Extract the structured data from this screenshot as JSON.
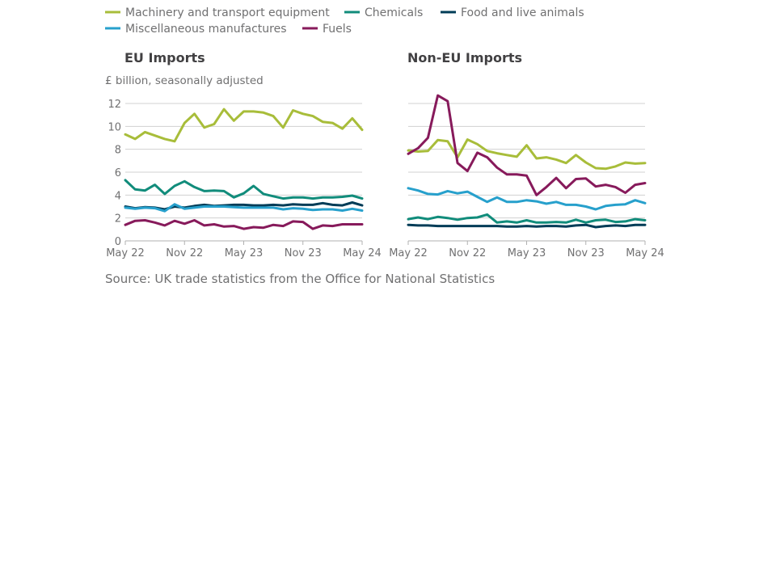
{
  "legend": [
    {
      "name": "Machinery and transport equipment",
      "color": "#a8bd3a"
    },
    {
      "name": "Chemicals",
      "color": "#118c7b"
    },
    {
      "name": "Food and live animals",
      "color": "#003c57"
    },
    {
      "name": "Miscellaneous manufactures",
      "color": "#27a0cc"
    },
    {
      "name": "Fuels",
      "color": "#871a5b"
    }
  ],
  "source": "Source: UK trade statistics from the Office for National Statistics",
  "chart_data": [
    {
      "type": "line",
      "title": "EU Imports",
      "ylabel": "£ billion, seasonally adjusted",
      "ylim": [
        0,
        12
      ],
      "yticks": [
        "0",
        "2",
        "4",
        "6",
        "8",
        "10",
        "12"
      ],
      "grid": true,
      "x": [
        "May 22",
        "Jun 22",
        "Jul 22",
        "Aug 22",
        "Sep 22",
        "Oct 22",
        "Nov 22",
        "Dec 22",
        "Jan 23",
        "Feb 23",
        "Mar 23",
        "Apr 23",
        "May 23",
        "Jun 23",
        "Jul 23",
        "Aug 23",
        "Sep 23",
        "Oct 23",
        "Nov 23",
        "Dec 23",
        "Jan 24",
        "Feb 24",
        "Mar 24",
        "Apr 24",
        "May 24"
      ],
      "xtick_labels": [
        "May 22",
        "Nov 22",
        "May 23",
        "Nov 23",
        "May 24"
      ],
      "series": [
        {
          "name": "Machinery and transport equipment",
          "color": "#a8bd3a",
          "values": [
            9.3,
            8.9,
            9.5,
            9.2,
            8.9,
            8.7,
            10.3,
            11.1,
            9.9,
            10.2,
            11.5,
            10.5,
            11.3,
            11.3,
            11.2,
            10.9,
            9.9,
            11.4,
            11.1,
            10.9,
            10.4,
            10.3,
            9.8,
            10.7,
            9.7
          ]
        },
        {
          "name": "Chemicals",
          "color": "#118c7b",
          "values": [
            5.3,
            4.5,
            4.4,
            4.9,
            4.1,
            4.8,
            5.2,
            4.7,
            4.35,
            4.4,
            4.35,
            3.8,
            4.15,
            4.8,
            4.1,
            3.9,
            3.7,
            3.8,
            3.8,
            3.7,
            3.8,
            3.8,
            3.85,
            3.95,
            3.7
          ]
        },
        {
          "name": "Food and live animals",
          "color": "#003c57",
          "values": [
            3.0,
            2.85,
            2.95,
            2.9,
            2.75,
            3.0,
            2.9,
            3.05,
            3.15,
            3.05,
            3.1,
            3.15,
            3.15,
            3.1,
            3.1,
            3.15,
            3.1,
            3.2,
            3.15,
            3.15,
            3.3,
            3.15,
            3.1,
            3.35,
            3.1
          ]
        },
        {
          "name": "Miscellaneous manufactures",
          "color": "#27a0cc",
          "values": [
            2.9,
            2.8,
            2.9,
            2.85,
            2.6,
            3.2,
            2.8,
            2.9,
            3.0,
            3.0,
            3.0,
            2.95,
            2.9,
            2.9,
            2.9,
            2.9,
            2.75,
            2.85,
            2.8,
            2.7,
            2.75,
            2.75,
            2.65,
            2.8,
            2.65
          ]
        },
        {
          "name": "Fuels",
          "color": "#871a5b",
          "values": [
            1.4,
            1.75,
            1.8,
            1.6,
            1.35,
            1.75,
            1.5,
            1.8,
            1.35,
            1.45,
            1.25,
            1.3,
            1.05,
            1.2,
            1.15,
            1.4,
            1.3,
            1.7,
            1.65,
            1.05,
            1.35,
            1.3,
            1.45,
            1.45,
            1.45
          ]
        }
      ]
    },
    {
      "type": "line",
      "title": "Non-EU Imports",
      "ylabel": "",
      "ylim": [
        0,
        12
      ],
      "grid": true,
      "x": [
        "May 22",
        "Jun 22",
        "Jul 22",
        "Aug 22",
        "Sep 22",
        "Oct 22",
        "Nov 22",
        "Dec 22",
        "Jan 23",
        "Feb 23",
        "Mar 23",
        "Apr 23",
        "May 23",
        "Jun 23",
        "Jul 23",
        "Aug 23",
        "Sep 23",
        "Oct 23",
        "Nov 23",
        "Dec 23",
        "Jan 24",
        "Feb 24",
        "Mar 24",
        "Apr 24",
        "May 24"
      ],
      "xtick_labels": [
        "May 22",
        "Nov 22",
        "May 23",
        "Nov 23",
        "May 24"
      ],
      "series": [
        {
          "name": "Machinery and transport equipment",
          "color": "#a8bd3a",
          "values": [
            7.9,
            7.8,
            7.85,
            8.8,
            8.7,
            7.3,
            8.85,
            8.45,
            7.85,
            7.65,
            7.5,
            7.35,
            8.35,
            7.2,
            7.3,
            7.1,
            6.8,
            7.5,
            6.85,
            6.35,
            6.3,
            6.5,
            6.85,
            6.75,
            6.8
          ]
        },
        {
          "name": "Fuels",
          "color": "#871a5b",
          "values": [
            7.6,
            8.1,
            9.0,
            12.7,
            12.2,
            6.8,
            6.1,
            7.7,
            7.3,
            6.4,
            5.8,
            5.8,
            5.7,
            4.0,
            4.7,
            5.5,
            4.6,
            5.4,
            5.45,
            4.75,
            4.9,
            4.7,
            4.2,
            4.9,
            5.05
          ]
        },
        {
          "name": "Miscellaneous manufactures",
          "color": "#27a0cc",
          "values": [
            4.6,
            4.4,
            4.1,
            4.05,
            4.35,
            4.15,
            4.3,
            3.85,
            3.4,
            3.8,
            3.4,
            3.4,
            3.55,
            3.45,
            3.25,
            3.4,
            3.15,
            3.15,
            3.0,
            2.75,
            3.05,
            3.15,
            3.2,
            3.55,
            3.3
          ]
        },
        {
          "name": "Chemicals",
          "color": "#118c7b",
          "values": [
            1.9,
            2.05,
            1.9,
            2.1,
            2.0,
            1.85,
            2.0,
            2.05,
            2.3,
            1.6,
            1.7,
            1.6,
            1.8,
            1.6,
            1.6,
            1.65,
            1.6,
            1.85,
            1.6,
            1.8,
            1.85,
            1.65,
            1.7,
            1.9,
            1.8
          ]
        },
        {
          "name": "Food and live animals",
          "color": "#003c57",
          "values": [
            1.4,
            1.35,
            1.35,
            1.3,
            1.3,
            1.3,
            1.3,
            1.3,
            1.3,
            1.3,
            1.25,
            1.25,
            1.3,
            1.25,
            1.3,
            1.3,
            1.25,
            1.35,
            1.4,
            1.2,
            1.3,
            1.35,
            1.3,
            1.4,
            1.4
          ]
        }
      ]
    }
  ]
}
